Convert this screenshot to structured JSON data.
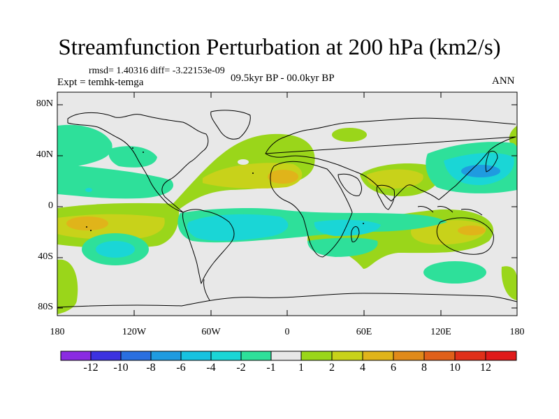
{
  "title": "Streamfunction Perturbation at 200 hPa (km2/s)",
  "stats": "rmsd= 1.40316 diff= -3.22153e-09",
  "experiment": "Expt = temhk-temga",
  "period": "09.5kyr BP - 00.0kyr BP",
  "season": "ANN",
  "lat_labels": [
    "80N",
    "40N",
    "0",
    "40S",
    "80S"
  ],
  "lon_labels": [
    "180",
    "120W",
    "60W",
    "0",
    "60E",
    "120E",
    "180"
  ],
  "colorbar": {
    "labels": [
      "-12",
      "-10",
      "-8",
      "-6",
      "-4",
      "-2",
      "-1",
      "1",
      "2",
      "4",
      "6",
      "8",
      "10",
      "12"
    ],
    "colors": [
      "#8a2be2",
      "#3c32e0",
      "#2a6fe0",
      "#1f9be0",
      "#17c2e0",
      "#1ad6d6",
      "#2ee09a",
      "#e8e8e8",
      "#9ad61a",
      "#c8d21a",
      "#e0b41a",
      "#e08a1a",
      "#e0601a",
      "#e0301a",
      "#e01a1a"
    ]
  }
}
